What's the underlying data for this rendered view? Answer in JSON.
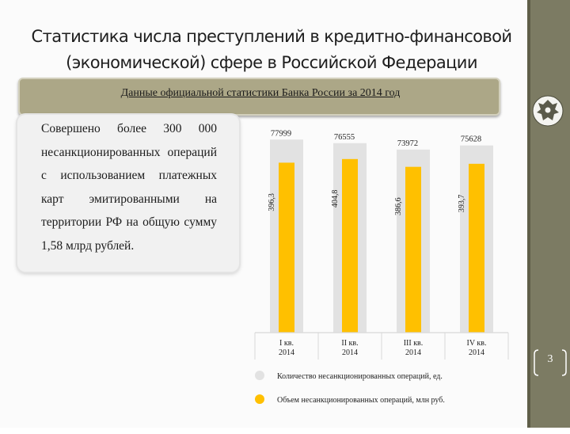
{
  "slide": {
    "title_line1": "Статистика числа преступлений в кредитно-финансовой",
    "title_line2": "(экономической) сфере в Российской Федерации",
    "banner": "Данные официальной статистики Банка России за 2014 год",
    "card_text": "Совершено более 300 000 несанкционированных операций с использованием платежных карт эмитированными на территории РФ на общую сумму 1,58 млрд рублей.",
    "page_number": "3",
    "emblem_icon": "bank-of-russia-emblem-icon",
    "colors": {
      "accent": "#7c7b63",
      "banner": "#aca787",
      "bar_gray": "#e2e2e2",
      "bar_gold": "#ffc000"
    }
  },
  "chart_data": {
    "type": "bar",
    "categories": [
      "I кв. 2014",
      "II кв. 2014",
      "III кв. 2014",
      "IV кв. 2014"
    ],
    "category_lines": [
      [
        "I кв.",
        "2014"
      ],
      [
        "II кв.",
        "2014"
      ],
      [
        "III кв.",
        "2014"
      ],
      [
        "IV кв.",
        "2014"
      ]
    ],
    "series": [
      {
        "name": "Количество несанкционированных операций, ед.",
        "values": [
          77999,
          76555,
          73972,
          75628
        ],
        "labels": [
          "77999",
          "76555",
          "73972",
          "75628"
        ],
        "color": "#e2e2e2"
      },
      {
        "name": "Объем несанкционированных операций, млн руб.",
        "values": [
          396.3,
          404.8,
          386.6,
          393.7
        ],
        "labels": [
          "396,3",
          "404,8",
          "386,6",
          "393,7"
        ],
        "color": "#ffc000"
      }
    ],
    "legend": "bottom",
    "grid": false
  }
}
